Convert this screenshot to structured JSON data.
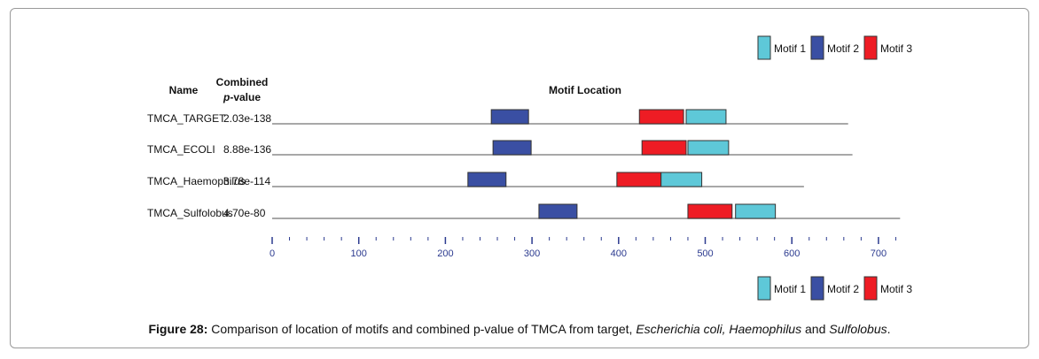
{
  "chart_data": {
    "type": "motif-location",
    "title": "Motif Location",
    "columns": {
      "name": "Name",
      "pvalue_line1": "Combined",
      "pvalue_line2_italic": "p",
      "pvalue_line2_rest": "-value"
    },
    "x_axis": {
      "min": 0,
      "max": 720,
      "ticks": [
        0,
        100,
        200,
        300,
        400,
        500,
        600,
        700
      ],
      "minor_step": 20
    },
    "legend": [
      {
        "name": "Motif 1",
        "color": "#5ec8d8"
      },
      {
        "name": "Motif 2",
        "color": "#3a4fa3"
      },
      {
        "name": "Motif 3",
        "color": "#ee1c24"
      }
    ],
    "legend_placement": [
      "top-right",
      "bottom-right"
    ],
    "sequences": [
      {
        "name": "TMCA_TARGET",
        "pvalue": "2.03e-138",
        "length": 665,
        "motifs": [
          {
            "motif": "Motif 2",
            "start": 253,
            "end": 296
          },
          {
            "motif": "Motif 3",
            "start": 424,
            "end": 475
          },
          {
            "motif": "Motif 1",
            "start": 478,
            "end": 524
          }
        ]
      },
      {
        "name": "TMCA_ECOLI",
        "pvalue": "8.88e-136",
        "length": 670,
        "motifs": [
          {
            "motif": "Motif 2",
            "start": 255,
            "end": 299
          },
          {
            "motif": "Motif 3",
            "start": 427,
            "end": 478
          },
          {
            "motif": "Motif 1",
            "start": 480,
            "end": 527
          }
        ]
      },
      {
        "name": "TMCA_Haemophilus",
        "pvalue": "3.78e-114",
        "length": 614,
        "motifs": [
          {
            "motif": "Motif 2",
            "start": 226,
            "end": 270
          },
          {
            "motif": "Motif 3",
            "start": 398,
            "end": 449
          },
          {
            "motif": "Motif 1",
            "start": 449,
            "end": 496
          }
        ]
      },
      {
        "name": "TMCA_Sulfolobus",
        "pvalue": "4.70e-80",
        "length": 725,
        "motifs": [
          {
            "motif": "Motif 2",
            "start": 308,
            "end": 352
          },
          {
            "motif": "Motif 3",
            "start": 480,
            "end": 531
          },
          {
            "motif": "Motif 1",
            "start": 535,
            "end": 581
          }
        ]
      }
    ]
  },
  "caption": {
    "label": "Figure 28:",
    "text_1": " Comparison of location of motifs and combined p-value of TMCA from target, ",
    "italic_1": "Escherichia coli, Haemophilus",
    "text_2": " and ",
    "italic_2": "Sulfolobus",
    "text_3": "."
  }
}
